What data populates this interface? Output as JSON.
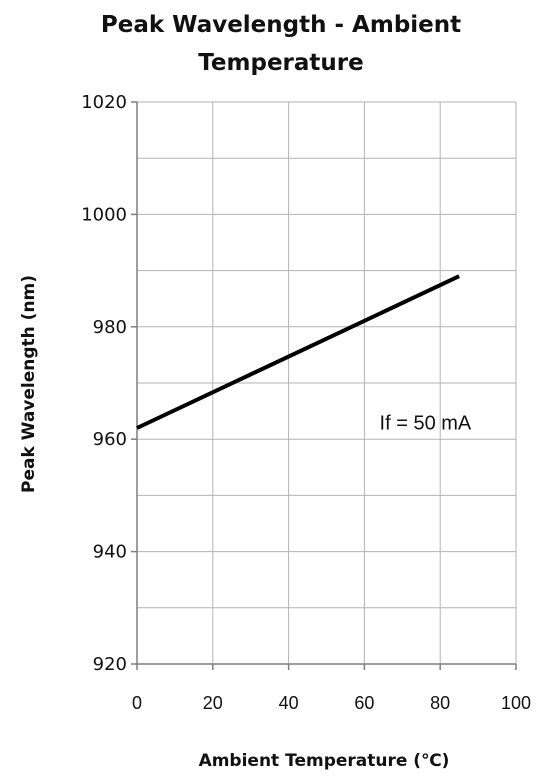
{
  "chart_data": {
    "type": "line",
    "title": "Peak Wavelength - Ambient Temperature",
    "title_lines": [
      "Peak Wavelength - Ambient",
      "Temperature"
    ],
    "xlabel": "Ambient Temperature (℃)",
    "ylabel": "Peak Wavelength (nm)",
    "xlim": [
      0,
      100
    ],
    "ylim": [
      920,
      1020
    ],
    "x_ticks": [
      "0",
      "20",
      "40",
      "60",
      "80",
      "100"
    ],
    "y_ticks": [
      "1020",
      "1000",
      "980",
      "960",
      "940",
      "920"
    ],
    "x_gridlines": [
      0,
      20,
      40,
      60,
      80,
      100
    ],
    "y_gridlines": [
      920,
      930,
      940,
      950,
      960,
      970,
      980,
      990,
      1000,
      1010,
      1020
    ],
    "grid": true,
    "series": [
      {
        "x": [
          0,
          85
        ],
        "y": [
          962,
          989
        ]
      }
    ],
    "annotation": {
      "text": "If = 50 mA",
      "x": 64,
      "y": 963
    },
    "colors": {
      "line": "#000000",
      "grid": "#b3b3b3",
      "axis": "#7f7f7f"
    }
  }
}
